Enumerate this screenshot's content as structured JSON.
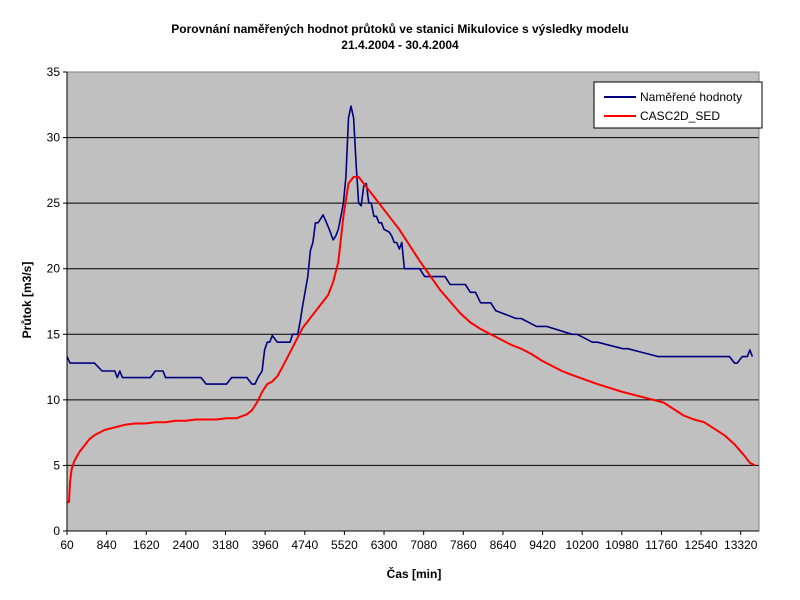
{
  "chart_data": {
    "type": "line",
    "title": "Porovnání naměřených hodnot průtoků ve stanici Mikulovice s výsledky modelu",
    "subtitle": "21.4.2004 - 30.4.2004",
    "xlabel": "Čas [min]",
    "ylabel": "Průtok [m3/s]",
    "xlim": [
      60,
      13680
    ],
    "ylim": [
      0,
      35
    ],
    "y_ticks": [
      0,
      5,
      10,
      15,
      20,
      25,
      30,
      35
    ],
    "x_ticks": [
      60,
      840,
      1620,
      2400,
      3180,
      3960,
      4740,
      5520,
      6300,
      7080,
      7860,
      8640,
      9420,
      10200,
      10980,
      11760,
      12540,
      13320
    ],
    "grid": "horizontal",
    "background_color": "#C0C0C0",
    "legend_position": "top-right",
    "series": [
      {
        "name": "Naměřené hodnoty",
        "color": "#000080",
        "x": [
          60,
          120,
          300,
          600,
          750,
          1000,
          1050,
          1100,
          1150,
          1500,
          1700,
          1800,
          1950,
          2000,
          2400,
          2700,
          2800,
          3000,
          3200,
          3300,
          3400,
          3500,
          3600,
          3700,
          3760,
          3820,
          3900,
          3950,
          4000,
          4050,
          4100,
          4200,
          4300,
          4350,
          4450,
          4500,
          4600,
          4650,
          4700,
          4800,
          4850,
          4900,
          4950,
          5000,
          5100,
          5200,
          5300,
          5350,
          5400,
          5450,
          5500,
          5550,
          5600,
          5650,
          5700,
          5750,
          5800,
          5850,
          5900,
          5950,
          6000,
          6050,
          6100,
          6150,
          6200,
          6250,
          6300,
          6400,
          6450,
          6500,
          6550,
          6600,
          6650,
          6700,
          6800,
          7000,
          7100,
          7500,
          7600,
          7900,
          8000,
          8050,
          8100,
          8200,
          8300,
          8400,
          8500,
          8900,
          9000,
          9300,
          9400,
          9500,
          10000,
          10100,
          10400,
          10500,
          11000,
          11100,
          11700,
          11800,
          12000,
          12500,
          13000,
          13100,
          13200,
          13250,
          13350,
          13400,
          13450,
          13500,
          13550
        ],
        "values": [
          13.3,
          12.8,
          12.8,
          12.8,
          12.2,
          12.2,
          11.7,
          12.2,
          11.7,
          11.7,
          11.7,
          12.2,
          12.2,
          11.7,
          11.7,
          11.7,
          11.2,
          11.2,
          11.2,
          11.7,
          11.7,
          11.7,
          11.7,
          11.2,
          11.2,
          11.7,
          12.2,
          13.8,
          14.4,
          14.4,
          14.9,
          14.4,
          14.4,
          14.4,
          14.4,
          15.0,
          15.0,
          16.0,
          17.2,
          19.4,
          21.4,
          22.0,
          23.5,
          23.5,
          24.1,
          23.2,
          22.2,
          22.5,
          23.0,
          24.0,
          25.0,
          27.0,
          31.5,
          32.4,
          31.5,
          28.0,
          25.0,
          24.8,
          26.3,
          26.5,
          25.0,
          25.0,
          24.0,
          24.0,
          23.5,
          23.5,
          23.0,
          22.8,
          22.5,
          22.0,
          22.0,
          21.5,
          22.0,
          20.0,
          20.0,
          20.0,
          19.4,
          19.4,
          18.8,
          18.8,
          18.2,
          18.2,
          18.2,
          17.4,
          17.4,
          17.4,
          16.8,
          16.2,
          16.2,
          15.6,
          15.6,
          15.6,
          15.0,
          15.0,
          14.4,
          14.4,
          13.9,
          13.9,
          13.3,
          13.3,
          13.3,
          13.3,
          13.3,
          13.3,
          12.8,
          12.8,
          13.3,
          13.3,
          13.3,
          13.8,
          13.3
        ]
      },
      {
        "name": "CASC2D_SED",
        "color": "#FF0000",
        "x": [
          60,
          100,
          120,
          150,
          200,
          300,
          400,
          500,
          600,
          700,
          800,
          900,
          1000,
          1200,
          1400,
          1600,
          1800,
          2000,
          2200,
          2400,
          2600,
          2800,
          3000,
          3200,
          3400,
          3600,
          3700,
          3800,
          3850,
          3900,
          4000,
          4100,
          4200,
          4300,
          4500,
          4700,
          4800,
          4900,
          5000,
          5100,
          5200,
          5300,
          5400,
          5500,
          5600,
          5700,
          5800,
          5900,
          6000,
          6200,
          6400,
          6600,
          6800,
          7000,
          7200,
          7400,
          7600,
          7800,
          8000,
          8200,
          8400,
          8600,
          8800,
          9000,
          9200,
          9400,
          9600,
          9800,
          10000,
          10500,
          11000,
          11500,
          11800,
          12000,
          12200,
          12400,
          12600,
          12800,
          13000,
          13200,
          13400,
          13500,
          13600
        ],
        "values": [
          2.2,
          2.2,
          3.7,
          4.7,
          5.3,
          6.0,
          6.5,
          7.0,
          7.3,
          7.5,
          7.7,
          7.8,
          7.9,
          8.1,
          8.2,
          8.2,
          8.3,
          8.3,
          8.4,
          8.4,
          8.5,
          8.5,
          8.5,
          8.6,
          8.6,
          8.9,
          9.2,
          9.8,
          10.2,
          10.6,
          11.2,
          11.4,
          11.8,
          12.5,
          14.0,
          15.5,
          16.0,
          16.5,
          17.0,
          17.5,
          18.0,
          19.0,
          20.5,
          24.0,
          26.5,
          27.0,
          27.0,
          26.5,
          26.0,
          25.0,
          24.0,
          23.0,
          21.8,
          20.6,
          19.5,
          18.4,
          17.5,
          16.6,
          15.9,
          15.4,
          15.0,
          14.6,
          14.2,
          13.9,
          13.5,
          13.0,
          12.6,
          12.2,
          11.9,
          11.2,
          10.6,
          10.1,
          9.8,
          9.3,
          8.8,
          8.5,
          8.3,
          7.8,
          7.3,
          6.6,
          5.7,
          5.2,
          5.0
        ]
      }
    ]
  }
}
